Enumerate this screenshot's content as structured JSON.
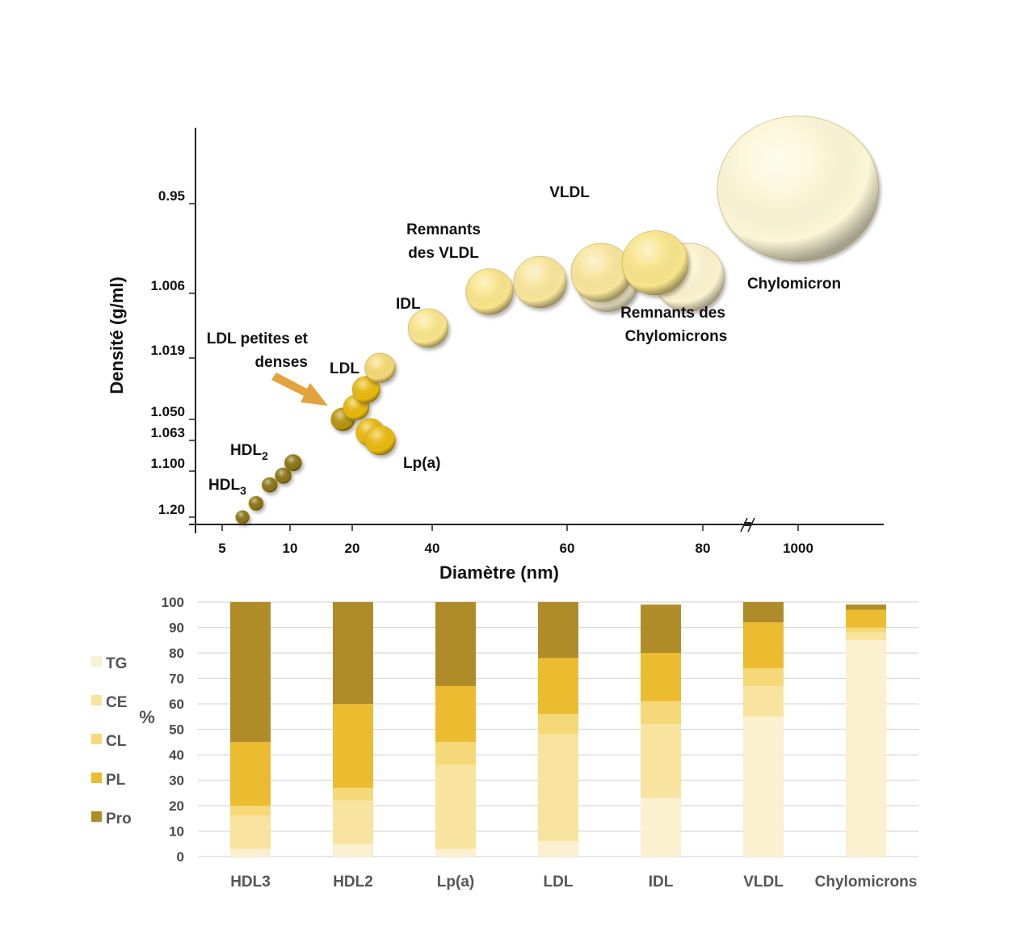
{
  "chart_data": [
    {
      "type": "scatter",
      "title": "",
      "xlabel": "Diamètre (nm)",
      "ylabel": "Densité (g/ml)",
      "x_ticks": [
        "5",
        "10",
        "20",
        "40",
        "60",
        "80",
        "1000"
      ],
      "y_ticks": [
        "0.95",
        "1.006",
        "1.019",
        "1.050",
        "1.063",
        "1.100",
        "1.20"
      ],
      "axis_break": "//",
      "grid": false,
      "annotations": {
        "hdl2": "HDL",
        "hdl2_sub": "2",
        "hdl3": "HDL",
        "hdl3_sub": "3",
        "ldl_small_line1": "LDL petites et",
        "ldl_small_line2": "denses",
        "ldl": "LDL",
        "idl": "IDL",
        "lpa": "Lp(a)",
        "vldl_rem_line1": "Remnants",
        "vldl_rem_line2": "des VLDL",
        "vldl": "VLDL",
        "chylo_rem_line1": "Remnants des",
        "chylo_rem_line2": "Chylomicrons",
        "chylo": "Chylomicron"
      },
      "particles": [
        {
          "name": "HDL3",
          "diameter_nm": 6.5,
          "density": 1.2,
          "color": "#8a7516"
        },
        {
          "name": "HDL3",
          "diameter_nm": 7.5,
          "density": 1.17,
          "color": "#8a7516"
        },
        {
          "name": "HDL2",
          "diameter_nm": 8.5,
          "density": 1.13,
          "color": "#8a7516"
        },
        {
          "name": "HDL2",
          "diameter_nm": 9.5,
          "density": 1.11,
          "color": "#8a7516"
        },
        {
          "name": "HDL2",
          "diameter_nm": 10.5,
          "density": 1.09,
          "color": "#8a7516"
        },
        {
          "name": "LDL petites et denses",
          "diameter_nm": 18.5,
          "density": 1.05,
          "color": "#b8960e"
        },
        {
          "name": "LDL",
          "diameter_nm": 21,
          "density": 1.044,
          "color": "#e8b80e"
        },
        {
          "name": "LDL",
          "diameter_nm": 23.5,
          "density": 1.035,
          "color": "#e8b80e"
        },
        {
          "name": "LDL",
          "diameter_nm": 27,
          "density": 1.024,
          "color": "#f3d874"
        },
        {
          "name": "Lp(a)",
          "diameter_nm": 24.5,
          "density": 1.058,
          "color": "#e8b80e"
        },
        {
          "name": "Lp(a)",
          "diameter_nm": 27,
          "density": 1.063,
          "color": "#e8b80e"
        },
        {
          "name": "IDL",
          "diameter_nm": 39,
          "density": 1.013,
          "color": "#f8e48a"
        },
        {
          "name": "Remnants des VLDL",
          "diameter_nm": 48.5,
          "density": 1.005,
          "color": "#f8e48a"
        },
        {
          "name": "Remnants des VLDL",
          "diameter_nm": 56,
          "density": 0.999,
          "color": "#f8e59a"
        },
        {
          "name": "Remnants des Chylomicrons",
          "diameter_nm": 66,
          "density": 0.999,
          "color": "#fbf3cf"
        },
        {
          "name": "Remnants des Chylomicrons",
          "diameter_nm": 78,
          "density": 0.996,
          "color": "#fbf3cf"
        },
        {
          "name": "VLDL",
          "diameter_nm": 65,
          "density": 0.993,
          "color": "#f8e59a"
        },
        {
          "name": "VLDL",
          "diameter_nm": 73,
          "density": 0.987,
          "color": "#f8e48a"
        },
        {
          "name": "Chylomicron",
          "diameter_nm": 1000,
          "density": 0.94,
          "color": "#fcf6d6"
        }
      ]
    },
    {
      "type": "bar",
      "stacked": true,
      "ylabel": "%",
      "ylim": [
        0,
        100
      ],
      "y_ticks": [
        "0",
        "10",
        "20",
        "30",
        "40",
        "50",
        "60",
        "70",
        "80",
        "90",
        "100"
      ],
      "grid": true,
      "legend_position": "left",
      "categories": [
        "HDL3",
        "HDL2",
        "Lp(a)",
        "LDL",
        "IDL",
        "VLDL",
        "Chylomicrons"
      ],
      "series": [
        {
          "name": "TG",
          "color": "#fbf0cf",
          "values": [
            3,
            5,
            3,
            6,
            23,
            55,
            85
          ]
        },
        {
          "name": "CE",
          "color": "#f8e49e",
          "values": [
            13,
            17,
            33,
            42,
            29,
            12,
            3
          ]
        },
        {
          "name": "CL",
          "color": "#f5d878",
          "values": [
            4,
            5,
            9,
            8,
            9,
            7,
            2
          ]
        },
        {
          "name": "PL",
          "color": "#ebbb30",
          "values": [
            25,
            33,
            22,
            22,
            19,
            18,
            7
          ]
        },
        {
          "name": "Pro",
          "color": "#b08c28",
          "values": [
            55,
            40,
            33,
            22,
            19,
            8,
            2
          ]
        }
      ]
    }
  ],
  "colors": {
    "arrow": "#e4a23c",
    "axis": "#222222",
    "gridline": "#d9d9d9"
  }
}
